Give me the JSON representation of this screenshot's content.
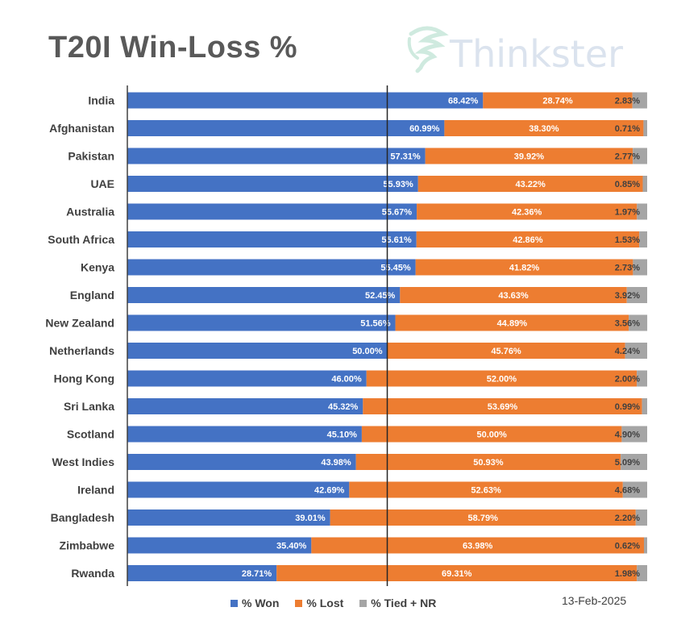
{
  "title": "T20I Win-Loss %",
  "logo": {
    "text": "Thinkster"
  },
  "date": "13-Feb-2025",
  "colors": {
    "won": "#4472C4",
    "lost": "#ED7D31",
    "tied": "#A5A5A5"
  },
  "legend": [
    {
      "label": "% Won",
      "color": "#4472C4"
    },
    {
      "label": "% Lost",
      "color": "#ED7D31"
    },
    {
      "label": "% Tied + NR",
      "color": "#A5A5A5"
    }
  ],
  "chart_data": {
    "type": "bar",
    "orientation": "horizontal",
    "stacked": true,
    "title": "T20I Win-Loss %",
    "xlim": [
      0,
      100
    ],
    "grid": false,
    "legend_position": "bottom",
    "categories": [
      "India",
      "Afghanistan",
      "Pakistan",
      "UAE",
      "Australia",
      "South Africa",
      "Kenya",
      "England",
      "New Zealand",
      "Netherlands",
      "Hong Kong",
      "Sri Lanka",
      "Scotland",
      "West Indies",
      "Ireland",
      "Bangladesh",
      "Zimbabwe",
      "Rwanda"
    ],
    "series": [
      {
        "name": "% Won",
        "values": [
          68.42,
          60.99,
          57.31,
          55.93,
          55.67,
          55.61,
          55.45,
          52.45,
          51.56,
          50.0,
          46.0,
          45.32,
          45.1,
          43.98,
          42.69,
          39.01,
          35.4,
          28.71
        ],
        "labels": [
          "68.42%",
          "60.99%",
          "57.31%",
          "55.93%",
          "55.67%",
          "55.61%",
          "55.45%",
          "52.45%",
          "51.56%",
          "50.00%",
          "46.00%",
          "45.32%",
          "45.10%",
          "43.98%",
          "42.69%",
          "39.01%",
          "35.40%",
          "28.71%"
        ]
      },
      {
        "name": "% Lost",
        "values": [
          28.74,
          38.3,
          39.92,
          43.22,
          42.36,
          42.86,
          41.82,
          43.63,
          44.89,
          45.76,
          52.0,
          53.69,
          50.0,
          50.93,
          52.63,
          58.79,
          63.98,
          69.31
        ],
        "labels": [
          "28.74%",
          "38.30%",
          "39.92%",
          "43.22%",
          "42.36%",
          "42.86%",
          "41.82%",
          "43.63%",
          "44.89%",
          "45.76%",
          "52.00%",
          "53.69%",
          "50.00%",
          "50.93%",
          "52.63%",
          "58.79%",
          "63.98%",
          "69.31%"
        ]
      },
      {
        "name": "% Tied + NR",
        "values": [
          2.83,
          0.71,
          2.77,
          0.85,
          1.97,
          1.53,
          2.73,
          3.92,
          3.56,
          4.24,
          2.0,
          0.99,
          4.9,
          5.09,
          4.68,
          2.2,
          0.62,
          1.98
        ],
        "labels": [
          "2.83%",
          "0.71%",
          "2.77%",
          "0.85%",
          "1.97%",
          "1.53%",
          "2.73%",
          "3.92%",
          "3.56%",
          "4.24%",
          "2.00%",
          "0.99%",
          "4.90%",
          "5.09%",
          "4.68%",
          "2.20%",
          "0.62%",
          "1.98%"
        ]
      }
    ],
    "reference_line": 50
  }
}
